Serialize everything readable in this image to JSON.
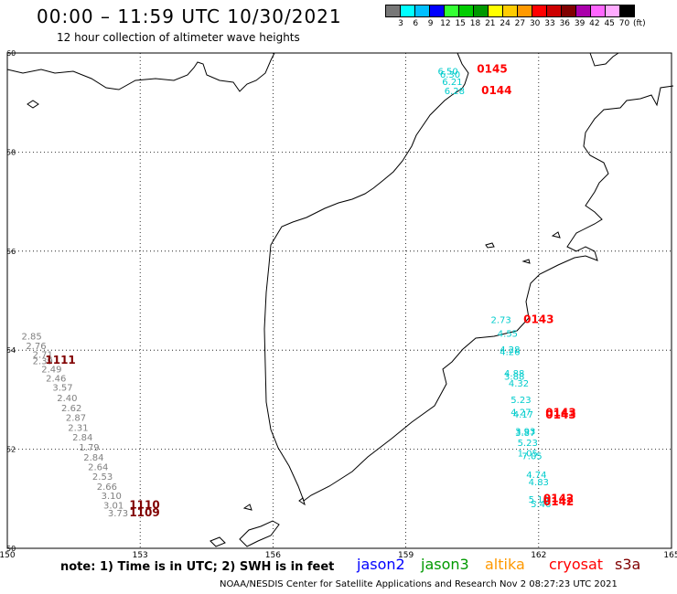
{
  "header": {
    "title": "00:00 – 11:59 UTC 10/30/2021",
    "subtitle": "12 hour collection of altimeter wave heights"
  },
  "scale": {
    "colors": [
      "#777777",
      "#00ffff",
      "#00bfff",
      "#0000ff",
      "#33ff33",
      "#00cc00",
      "#009900",
      "#ffff00",
      "#ffcc00",
      "#ff9900",
      "#ff0000",
      "#cc0000",
      "#800000",
      "#aa00aa",
      "#ff66ff",
      "#ffaaff",
      "#000000"
    ],
    "labels": [
      "3",
      "6",
      "9",
      "12",
      "15",
      "18",
      "21",
      "24",
      "27",
      "30",
      "33",
      "36",
      "39",
      "42",
      "45",
      "70",
      "(ft)"
    ]
  },
  "map": {
    "lon_ticks": [
      "150",
      "153",
      "156",
      "159",
      "162",
      "165"
    ],
    "lat_ticks": [
      "60",
      "58",
      "56",
      "54",
      "52",
      "50"
    ]
  },
  "tracks": [
    {
      "id": "west-gray",
      "color": "#808080",
      "points": [
        [
          "2.85",
          150.55,
          54.22
        ],
        [
          "2.76",
          150.65,
          54.02
        ],
        [
          "2.71",
          150.8,
          53.85
        ],
        [
          "2.39",
          150.8,
          53.72
        ],
        [
          "2.49",
          151.0,
          53.55
        ],
        [
          "2.46",
          151.1,
          53.37
        ],
        [
          "3.57",
          151.25,
          53.18
        ],
        [
          "2.40",
          151.35,
          52.97
        ],
        [
          "2.62",
          151.45,
          52.77
        ],
        [
          "2.87",
          151.55,
          52.57
        ],
        [
          "2.31",
          151.6,
          52.37
        ],
        [
          "2.84",
          151.7,
          52.18
        ],
        [
          "1.79",
          151.85,
          51.97
        ],
        [
          "2.84",
          151.95,
          51.77
        ],
        [
          "2.64",
          152.05,
          51.58
        ],
        [
          "2.53",
          152.15,
          51.38
        ],
        [
          "2.66",
          152.25,
          51.18
        ],
        [
          "3.10",
          152.35,
          51.0
        ],
        [
          "3.01",
          152.4,
          50.8
        ],
        [
          "3.73",
          152.5,
          50.65
        ]
      ]
    },
    {
      "id": "east-cyan",
      "color": "#00cccc",
      "points": [
        [
          "6.50",
          159.95,
          59.57
        ],
        [
          "6.30",
          160.0,
          59.5
        ],
        [
          "6.21",
          160.05,
          59.35
        ],
        [
          "6.28",
          160.1,
          59.17
        ],
        [
          "2.73",
          161.15,
          54.55
        ],
        [
          "4.55",
          161.3,
          54.27
        ],
        [
          "4.28",
          161.35,
          53.95
        ],
        [
          "4.26",
          161.35,
          53.9
        ],
        [
          "4.88",
          161.45,
          53.47
        ],
        [
          "3.88",
          161.45,
          53.4
        ],
        [
          "4.32",
          161.55,
          53.27
        ],
        [
          "5.23",
          161.6,
          52.93
        ],
        [
          "4.27",
          161.6,
          52.68
        ],
        [
          "4.17",
          161.65,
          52.64
        ],
        [
          "3.93",
          161.7,
          52.3
        ],
        [
          "3.87",
          161.7,
          52.27
        ],
        [
          "5.23",
          161.75,
          52.07
        ],
        [
          "1.05",
          161.75,
          51.85
        ],
        [
          "7.05",
          161.85,
          51.8
        ],
        [
          "4.74",
          161.95,
          51.42
        ],
        [
          "4.83",
          162.0,
          51.27
        ],
        [
          "5.10",
          162.0,
          50.92
        ],
        [
          "5.46",
          162.05,
          50.83
        ]
      ]
    }
  ],
  "time_labels": [
    {
      "text": "0145",
      "lon": 160.95,
      "lat": 59.6,
      "color": "#ff0000"
    },
    {
      "text": "0144",
      "lon": 161.05,
      "lat": 59.17,
      "color": "#ff0000"
    },
    {
      "text": "0143",
      "lon": 162.0,
      "lat": 54.55,
      "color": "#ff0000"
    },
    {
      "text": "0143",
      "lon": 162.5,
      "lat": 52.67,
      "color": "#ff0000"
    },
    {
      "text": "0143",
      "lon": 162.5,
      "lat": 52.62,
      "color": "#ff0000"
    },
    {
      "text": "0142",
      "lon": 162.45,
      "lat": 50.93,
      "color": "#ff0000"
    },
    {
      "text": "0142",
      "lon": 162.45,
      "lat": 50.87,
      "color": "#ff0000"
    },
    {
      "text": "1111",
      "lon": 151.2,
      "lat": 53.73,
      "color": "#800000"
    },
    {
      "text": "1110",
      "lon": 153.1,
      "lat": 50.8,
      "color": "#800000"
    },
    {
      "text": "1109",
      "lon": 153.1,
      "lat": 50.65,
      "color": "#800000"
    }
  ],
  "footer": {
    "note": "note: 1) Time is in UTC; 2) SWH is in feet",
    "satellites": [
      {
        "name": "jason2",
        "color": "#0000ff"
      },
      {
        "name": "jason3",
        "color": "#009900"
      },
      {
        "name": "altika",
        "color": "#ff9900"
      },
      {
        "name": "cryosat",
        "color": "#ff0000"
      },
      {
        "name": "s3a",
        "color": "#800000"
      }
    ],
    "credit": "NOAA/NESDIS Center for Satellite Applications and Research    Nov  2 08:27:23 UTC 2021"
  }
}
